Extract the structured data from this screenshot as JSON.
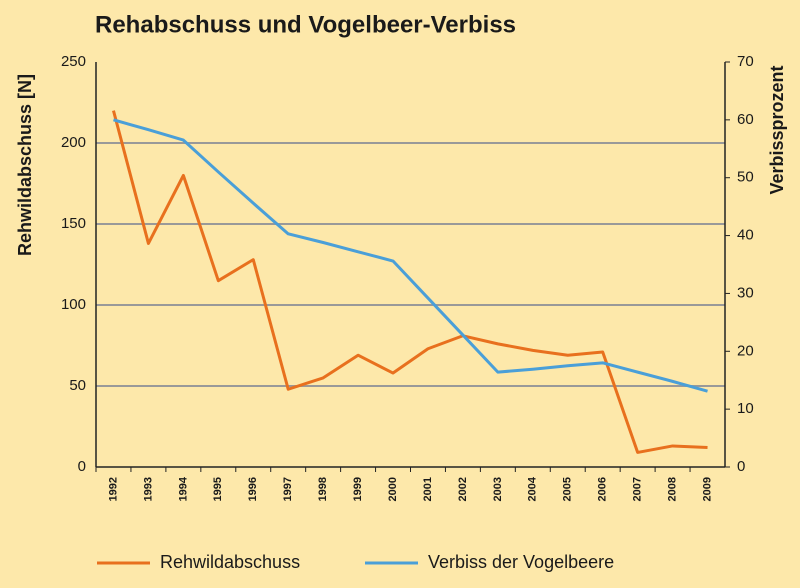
{
  "chart_data": {
    "type": "line",
    "title": "Rehabschuss und Vogelbeer-Verbiss",
    "ylabel": "Rehwildabschuss [N]",
    "y2label": "Verbissprozent",
    "categories": [
      "1992",
      "1993",
      "1994",
      "1995",
      "1996",
      "1997",
      "1998",
      "1999",
      "2000",
      "2001",
      "2002",
      "2003",
      "2004",
      "2005",
      "2006",
      "2007",
      "2008",
      "2009"
    ],
    "series": [
      {
        "name": "Rehwildabschuss",
        "color": "#e8701e",
        "values": [
          220,
          138,
          180,
          115,
          128,
          48,
          55,
          69,
          58,
          73,
          81,
          76,
          72,
          69,
          71,
          9,
          13,
          12
        ]
      },
      {
        "name": "Verbiss der Vogelbeere",
        "color": "#4a9fd8",
        "axis": "y2",
        "values": [
          60,
          58.3,
          56.5,
          51,
          45.6,
          40.3,
          38.8,
          37.2,
          35.6,
          29.2,
          22.8,
          16.4,
          16.9,
          17.5,
          18,
          16.4,
          14.8,
          13.1
        ]
      }
    ],
    "ylim": [
      0,
      250
    ],
    "yticks": [
      0,
      50,
      100,
      150,
      200,
      250
    ],
    "y2lim": [
      0,
      70
    ],
    "y2ticks": [
      0,
      10,
      20,
      30,
      40,
      50,
      60,
      70
    ],
    "grid": true
  }
}
